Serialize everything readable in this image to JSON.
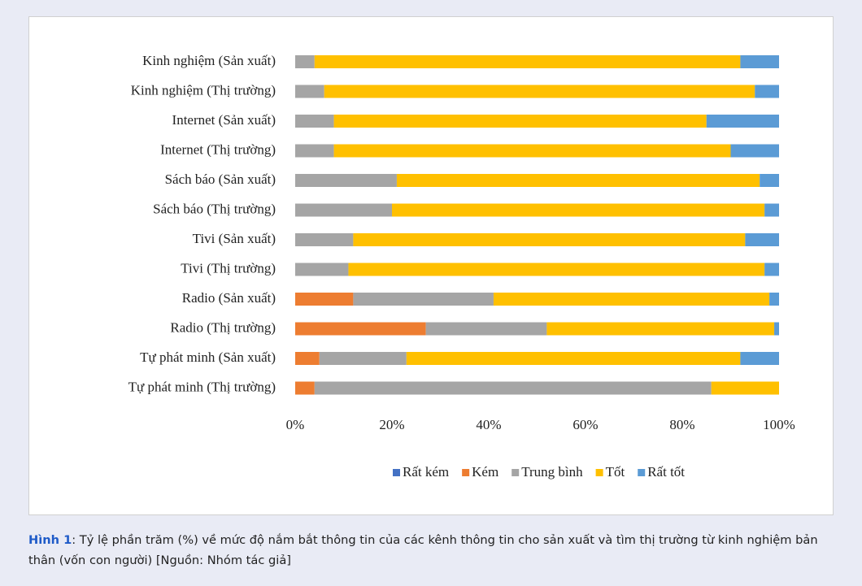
{
  "chart_data": {
    "type": "stacked-bar-horizontal",
    "categories": [
      "Kinh nghiệm (Sản xuất)",
      "Kinh nghiệm (Thị trường)",
      "Internet (Sản xuất)",
      "Internet (Thị trường)",
      "Sách báo (Sản xuất)",
      "Sách báo (Thị trường)",
      "Tivi (Sản xuất)",
      "Tivi (Thị trường)",
      "Radio (Sản xuất)",
      "Radio (Thị trường)",
      "Tự phát minh (Sản xuất)",
      "Tự phát minh (Thị trường)"
    ],
    "series": [
      {
        "name": "Rất kém",
        "color": "#4472c4",
        "values": [
          0,
          0,
          0,
          0,
          0,
          0,
          0,
          0,
          0,
          0,
          0,
          0
        ]
      },
      {
        "name": "Kém",
        "color": "#ed7d31",
        "values": [
          0,
          0,
          0,
          0,
          0,
          0,
          0,
          0,
          12,
          27,
          5,
          4
        ]
      },
      {
        "name": "Trung bình",
        "color": "#a5a5a5",
        "values": [
          4,
          6,
          8,
          8,
          21,
          20,
          12,
          11,
          29,
          25,
          18,
          82
        ]
      },
      {
        "name": "Tốt",
        "color": "#ffc000",
        "values": [
          88,
          89,
          77,
          82,
          75,
          77,
          81,
          86,
          57,
          47,
          69,
          14
        ]
      },
      {
        "name": "Rất tốt",
        "color": "#5b9bd5",
        "values": [
          8,
          5,
          15,
          10,
          4,
          3,
          7,
          3,
          2,
          1,
          8,
          0
        ]
      }
    ],
    "xlim": [
      0,
      100
    ],
    "xticks": [
      {
        "value": 0,
        "label": "0%"
      },
      {
        "value": 20,
        "label": "20%"
      },
      {
        "value": 40,
        "label": "40%"
      },
      {
        "value": 60,
        "label": "60%"
      },
      {
        "value": 80,
        "label": "80%"
      },
      {
        "value": 100,
        "label": "100%"
      }
    ],
    "legend": "bottom"
  },
  "caption": {
    "label": "Hình 1",
    "text": ": Tỷ lệ phần trăm (%) về mức độ nắm bắt thông tin của các kênh thông tin cho sản xuất và tìm thị trường từ kinh nghiệm bản thân (vốn con người) [Nguồn: Nhóm tác giả]"
  }
}
